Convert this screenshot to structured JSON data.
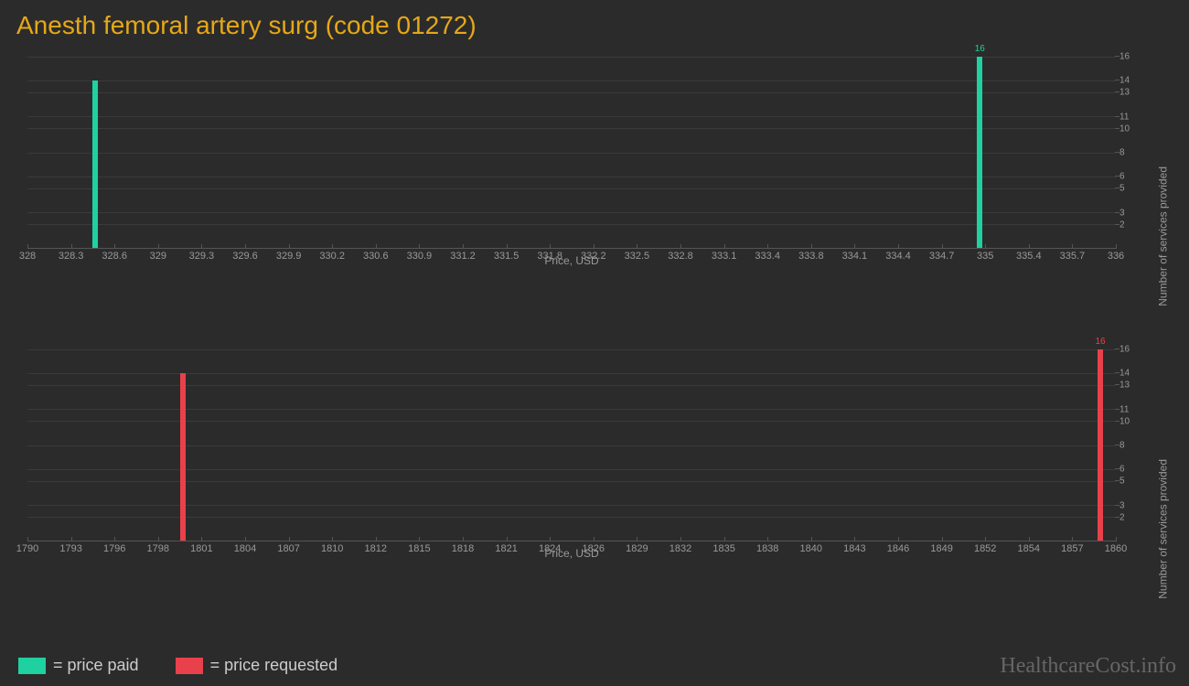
{
  "title": "Anesth femoral artery surg (code 01272)",
  "colors": {
    "paid": "#1fd1a1",
    "requested": "#e8414c",
    "title": "#e6a817",
    "background": "#2b2b2b",
    "grid": "#3a3a3a",
    "axis_text": "#999999"
  },
  "chart1": {
    "type": "bar",
    "x_label": "Price, USD",
    "y_label": "Number of services provided",
    "x_min": 328,
    "x_max": 336,
    "x_tick_step": 0.3,
    "x_ticks": [
      "328",
      "328.3",
      "328.6",
      "329",
      "329.3",
      "329.6",
      "329.9",
      "330.2",
      "330.6",
      "330.9",
      "331.2",
      "331.5",
      "331.8",
      "332.2",
      "332.5",
      "332.8",
      "333.1",
      "333.4",
      "333.8",
      "334.1",
      "334.4",
      "334.7",
      "335",
      "335.4",
      "335.7",
      "336"
    ],
    "y_min": 0,
    "y_max": 16,
    "y_ticks": [
      2,
      3,
      5,
      6,
      8,
      10,
      11,
      13,
      14,
      16
    ],
    "bars": [
      {
        "x": 328.5,
        "y": 14,
        "color": "#1fd1a1",
        "label": ""
      },
      {
        "x": 335.0,
        "y": 16,
        "color": "#1fd1a1",
        "label": "16"
      }
    ]
  },
  "chart2": {
    "type": "bar",
    "x_label": "Price, USD",
    "y_label": "Number of services provided",
    "x_min": 1790,
    "x_max": 1860,
    "x_ticks": [
      "1790",
      "1793",
      "1796",
      "1798",
      "1801",
      "1804",
      "1807",
      "1810",
      "1812",
      "1815",
      "1818",
      "1821",
      "1824",
      "1826",
      "1829",
      "1832",
      "1835",
      "1838",
      "1840",
      "1843",
      "1846",
      "1849",
      "1852",
      "1854",
      "1857",
      "1860"
    ],
    "y_min": 0,
    "y_max": 16,
    "y_ticks": [
      2,
      3,
      5,
      6,
      8,
      10,
      11,
      13,
      14,
      16
    ],
    "bars": [
      {
        "x": 1800,
        "y": 14,
        "color": "#e8414c",
        "label": ""
      },
      {
        "x": 1859,
        "y": 16,
        "color": "#e8414c",
        "label": "16"
      }
    ]
  },
  "legend": [
    {
      "color": "#1fd1a1",
      "text": "= price paid"
    },
    {
      "color": "#e8414c",
      "text": "= price requested"
    }
  ],
  "watermark": "HealthcareCost.info"
}
